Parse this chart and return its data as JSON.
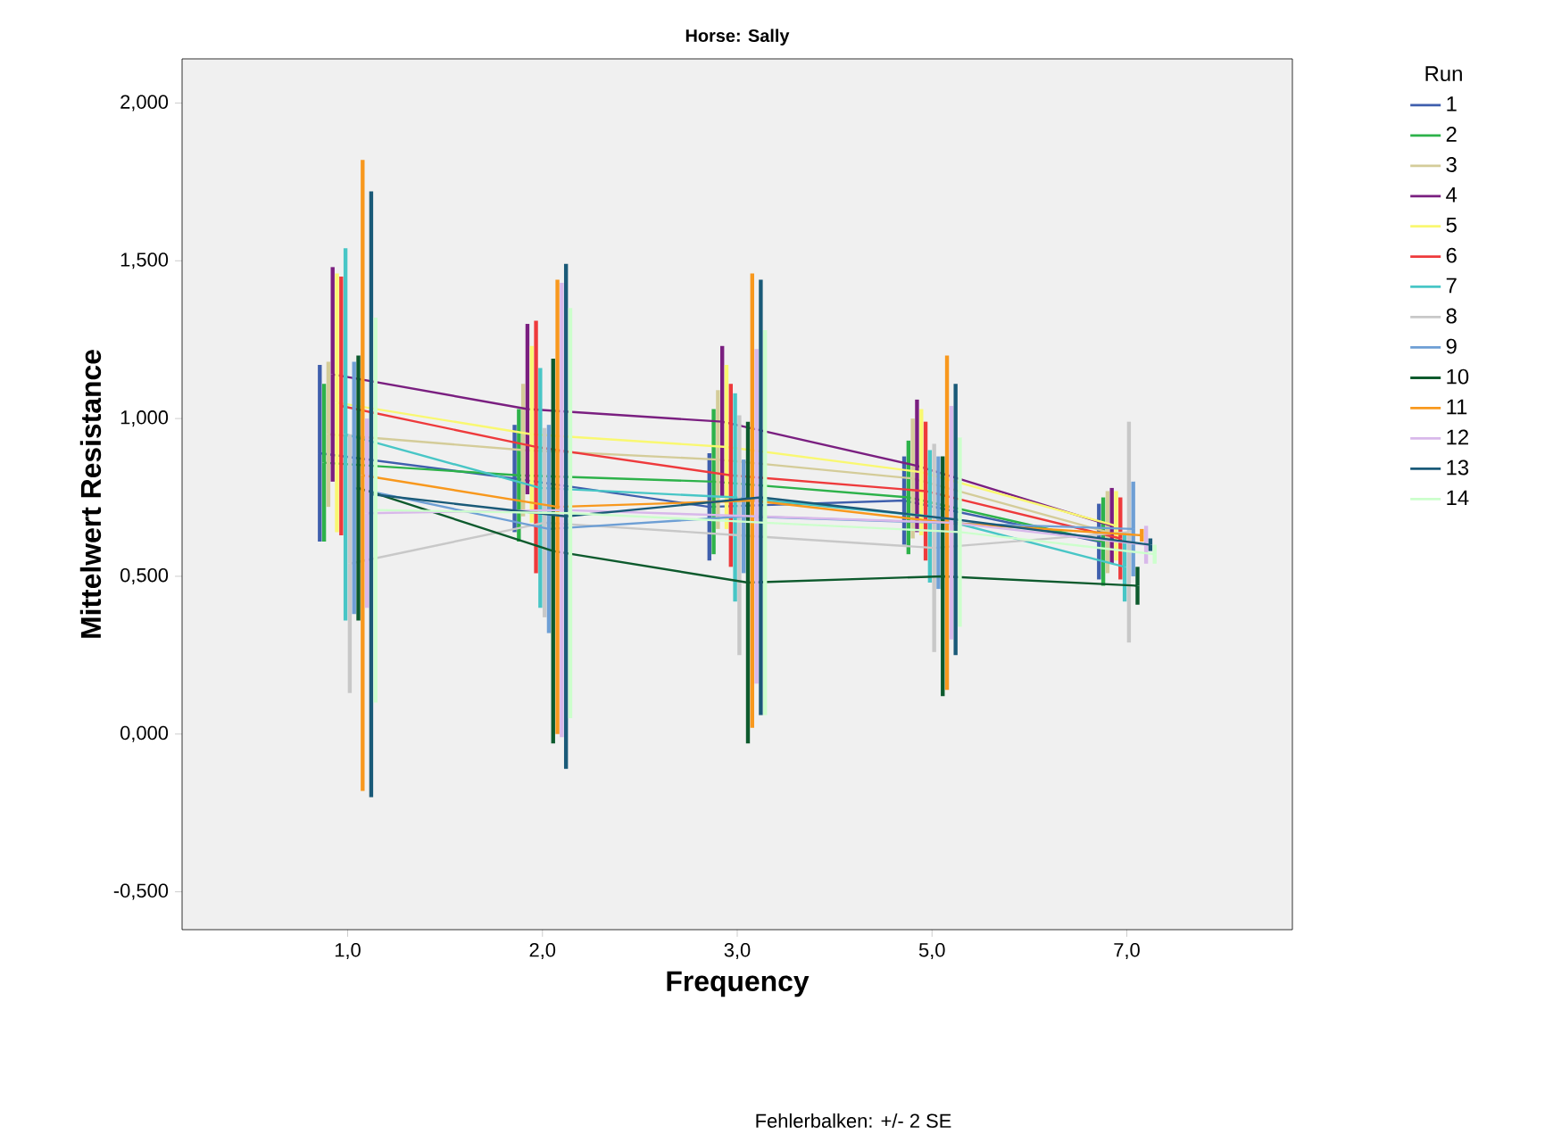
{
  "chart_data": {
    "type": "line",
    "title": "Horse: Sally",
    "xlabel": "Frequency",
    "ylabel": "Mittelwert Resistance",
    "legend_title": "Run",
    "legend": "right",
    "marker": "none",
    "line_style": "solid",
    "grid": false,
    "categories": [
      "1,0",
      "2,0",
      "3,0",
      "5,0",
      "7,0"
    ],
    "ylim": [
      -0.62,
      2.14
    ],
    "yticks": [
      {
        "value": -0.5,
        "label": "-0,500"
      },
      {
        "value": 0,
        "label": "0,000"
      },
      {
        "value": 0.5,
        "label": "0,500"
      },
      {
        "value": 1,
        "label": "1,000"
      },
      {
        "value": 1.5,
        "label": "1,500"
      },
      {
        "value": 2,
        "label": "2,000"
      }
    ],
    "annotations": [
      "Fehlerbalken: +/- 2 SE"
    ],
    "series": [
      {
        "name": "1",
        "color": "#3f5fad",
        "values": [
          0.89,
          0.81,
          0.72,
          0.74,
          0.61
        ],
        "errors": [
          0.28,
          0.17,
          0.17,
          0.14,
          0.12
        ]
      },
      {
        "name": "2",
        "color": "#2db24a",
        "values": [
          0.86,
          0.82,
          0.8,
          0.75,
          0.61
        ],
        "errors": [
          0.25,
          0.21,
          0.23,
          0.18,
          0.14
        ]
      },
      {
        "name": "3",
        "color": "#d4cc99",
        "values": [
          0.95,
          0.9,
          0.87,
          0.81,
          0.64
        ],
        "errors": [
          0.23,
          0.21,
          0.22,
          0.19,
          0.13
        ]
      },
      {
        "name": "4",
        "color": "#7a1f80",
        "values": [
          1.14,
          1.03,
          0.99,
          0.85,
          0.66
        ],
        "errors": [
          0.34,
          0.27,
          0.24,
          0.21,
          0.12
        ]
      },
      {
        "name": "5",
        "color": "#f9f871",
        "values": [
          1.05,
          0.95,
          0.91,
          0.83,
          0.66
        ],
        "errors": [
          0.41,
          0.28,
          0.26,
          0.2,
          0.11
        ]
      },
      {
        "name": "6",
        "color": "#ee3a3c",
        "values": [
          1.04,
          0.91,
          0.82,
          0.77,
          0.62
        ],
        "errors": [
          0.41,
          0.4,
          0.29,
          0.22,
          0.13
        ]
      },
      {
        "name": "7",
        "color": "#48c6c6",
        "values": [
          0.95,
          0.78,
          0.75,
          0.69,
          0.53
        ],
        "errors": [
          0.59,
          0.38,
          0.33,
          0.21,
          0.11
        ]
      },
      {
        "name": "8",
        "color": "#c8c8c8",
        "values": [
          0.54,
          0.67,
          0.63,
          0.59,
          0.64
        ],
        "errors": [
          0.41,
          0.3,
          0.38,
          0.33,
          0.35
        ]
      },
      {
        "name": "9",
        "color": "#6e9fd5",
        "values": [
          0.78,
          0.65,
          0.69,
          0.67,
          0.65
        ],
        "errors": [
          0.4,
          0.33,
          0.18,
          0.21,
          0.15
        ]
      },
      {
        "name": "10",
        "color": "#0d5a2d",
        "values": [
          0.78,
          0.58,
          0.48,
          0.5,
          0.47
        ],
        "errors": [
          0.42,
          0.61,
          0.51,
          0.38,
          0.06
        ]
      },
      {
        "name": "11",
        "color": "#f8981d",
        "values": [
          0.82,
          0.72,
          0.74,
          0.67,
          0.63
        ],
        "errors": [
          1.0,
          0.72,
          0.72,
          0.53,
          0.02
        ]
      },
      {
        "name": "12",
        "color": "#d8b8ea",
        "values": [
          0.7,
          0.71,
          0.69,
          0.67,
          0.6
        ],
        "errors": [
          0.3,
          0.72,
          0.53,
          0.37,
          0.06
        ]
      },
      {
        "name": "13",
        "color": "#1a5a78",
        "values": [
          0.76,
          0.69,
          0.75,
          0.68,
          0.6
        ],
        "errors": [
          0.96,
          0.8,
          0.69,
          0.43,
          0.02
        ]
      },
      {
        "name": "14",
        "color": "#ccffcc",
        "values": [
          0.71,
          0.7,
          0.67,
          0.64,
          0.57
        ],
        "errors": [
          0.61,
          0.65,
          0.61,
          0.3,
          0.03
        ]
      }
    ]
  }
}
